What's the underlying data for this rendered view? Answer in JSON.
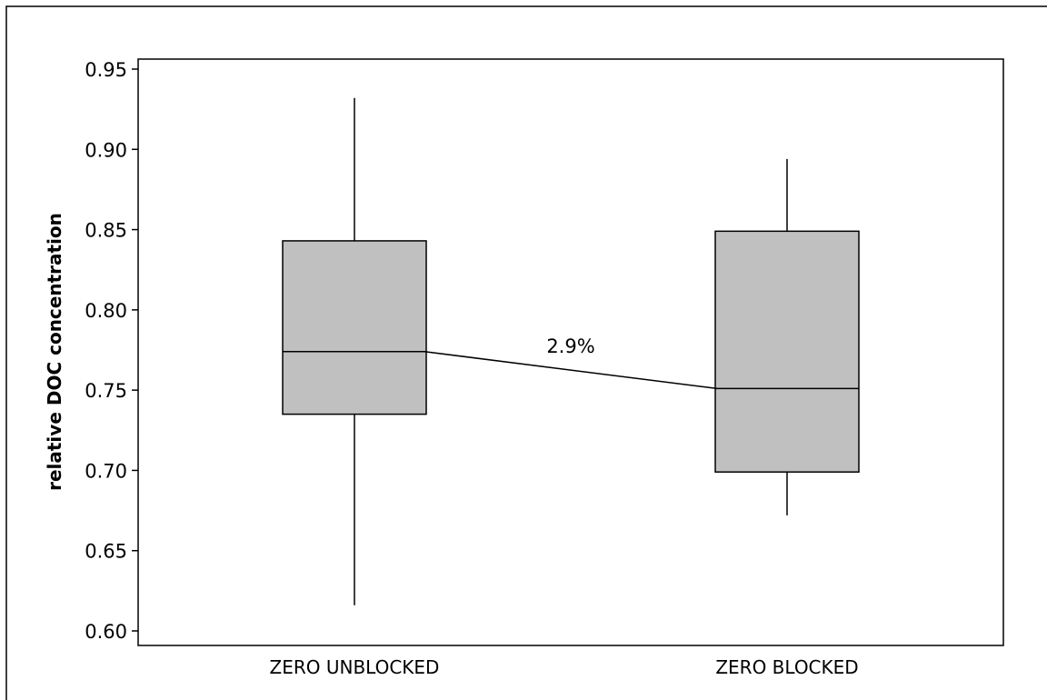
{
  "chart_data": {
    "type": "box",
    "title": "",
    "xlabel": "",
    "ylabel": "relative DOC concentration",
    "ylim": [
      0.595,
      0.955
    ],
    "yticks": [
      0.6,
      0.65,
      0.7,
      0.75,
      0.8,
      0.85,
      0.9,
      0.95
    ],
    "ytick_labels": [
      "0.60",
      "0.65",
      "0.70",
      "0.75",
      "0.80",
      "0.85",
      "0.90",
      "0.95"
    ],
    "grid": false,
    "categories": [
      "ZERO UNBLOCKED",
      "ZERO BLOCKED"
    ],
    "boxes": [
      {
        "category": "ZERO UNBLOCKED",
        "whisker_low": 0.616,
        "q1": 0.735,
        "median": 0.774,
        "q3": 0.843,
        "whisker_high": 0.932
      },
      {
        "category": "ZERO BLOCKED",
        "whisker_low": 0.672,
        "q1": 0.699,
        "median": 0.751,
        "q3": 0.849,
        "whisker_high": 0.894
      }
    ],
    "annotation": {
      "text": "2.9%",
      "connects": "medians"
    },
    "box_fill": "#c0c0c0",
    "line_color": "#000000"
  }
}
